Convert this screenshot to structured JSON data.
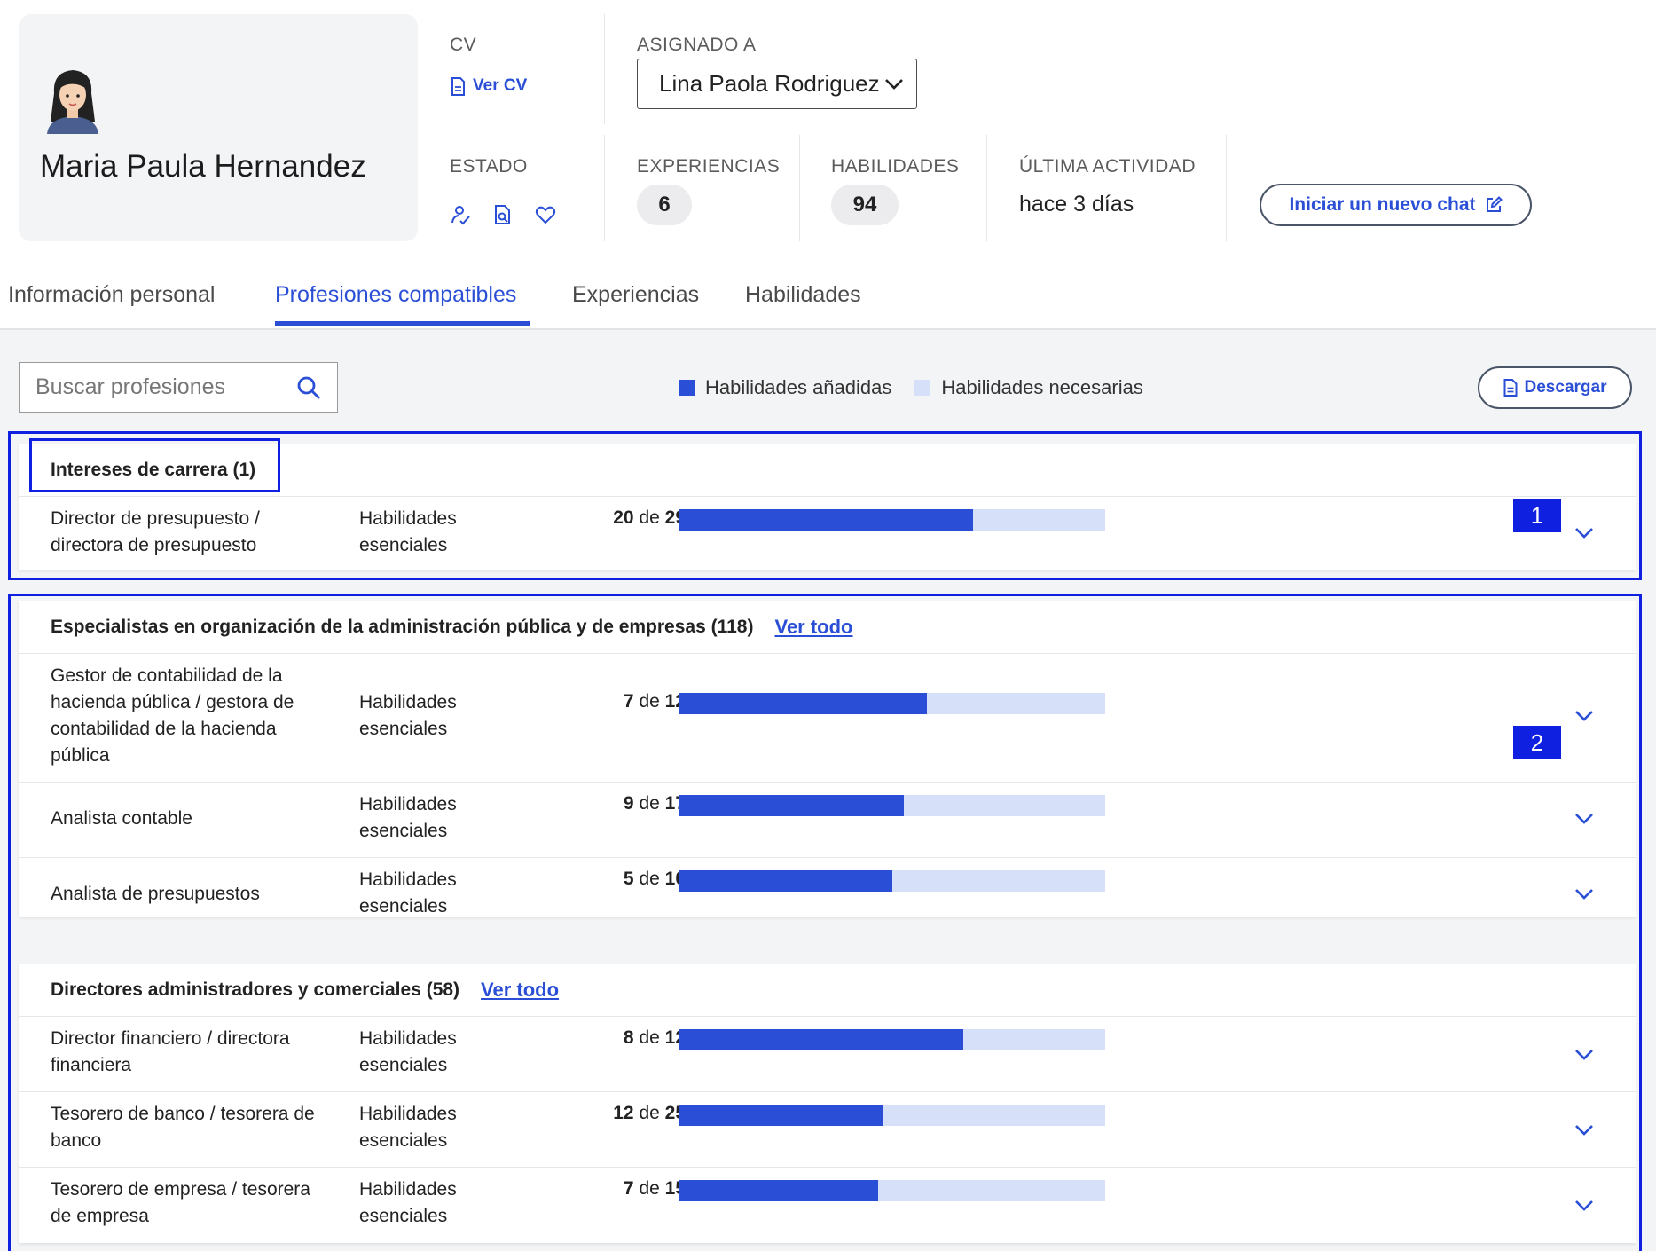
{
  "profile": {
    "name": "Maria Paula Hernandez"
  },
  "meta": {
    "cv_label": "CV",
    "cv_link": "Ver CV",
    "assigned_label": "ASIGNADO A",
    "assigned_value": "Lina Paola Rodriguez",
    "status_label": "ESTADO",
    "experiences_label": "EXPERIENCIAS",
    "experiences_count": "6",
    "skills_label": "HABILIDADES",
    "skills_count": "94",
    "last_activity_label": "ÚLTIMA ACTIVIDAD",
    "last_activity_value": "hace 3 días",
    "chat_button": "Iniciar un nuevo chat"
  },
  "tabs": [
    {
      "label": "Información personal",
      "active": false
    },
    {
      "label": "Profesiones compatibles",
      "active": true
    },
    {
      "label": "Experiencias",
      "active": false
    },
    {
      "label": "Habilidades",
      "active": false
    }
  ],
  "toolbar": {
    "search_placeholder": "Buscar profesiones",
    "legend_added": "Habilidades añadidas",
    "legend_needed": "Habilidades necesarias",
    "download": "Descargar"
  },
  "colors": {
    "accent": "#2a4fd6",
    "bar_empty": "#d6e0f8",
    "highlight": "#1020e0"
  },
  "markers": [
    "1",
    "2"
  ],
  "groups": [
    {
      "title": "Intereses de carrera (1)",
      "view_all": "",
      "rows": [
        {
          "title": "Director de presupuesto / directora de presupuesto",
          "type": "Habilidades esenciales",
          "have": "20",
          "sep": "de",
          "total": "29",
          "ratio": 0.69
        }
      ]
    },
    {
      "title": "Especialistas en organización de la administración pública y de empresas (118)",
      "view_all": "Ver todo",
      "rows": [
        {
          "title": "Gestor de contabilidad de la hacienda pública / gestora de contabilidad de la hacienda pública",
          "type": "Habilidades esenciales",
          "have": "7",
          "sep": "de",
          "total": "12",
          "ratio": 0.583
        },
        {
          "title": "Analista contable",
          "type": "Habilidades esenciales",
          "have": "9",
          "sep": "de",
          "total": "17",
          "ratio": 0.529
        },
        {
          "title": "Analista de presupuestos",
          "type": "Habilidades esenciales",
          "have": "5",
          "sep": "de",
          "total": "10",
          "ratio": 0.5
        }
      ]
    },
    {
      "title": "Directores administradores y comerciales (58)",
      "view_all": "Ver todo",
      "rows": [
        {
          "title": "Director financiero / directora financiera",
          "type": "Habilidades esenciales",
          "have": "8",
          "sep": "de",
          "total": "12",
          "ratio": 0.667
        },
        {
          "title": "Tesorero de banco / tesorera de banco",
          "type": "Habilidades esenciales",
          "have": "12",
          "sep": "de",
          "total": "25",
          "ratio": 0.48
        },
        {
          "title": "Tesorero de empresa / tesorera de empresa",
          "type": "Habilidades esenciales",
          "have": "7",
          "sep": "de",
          "total": "15",
          "ratio": 0.467
        }
      ]
    }
  ]
}
